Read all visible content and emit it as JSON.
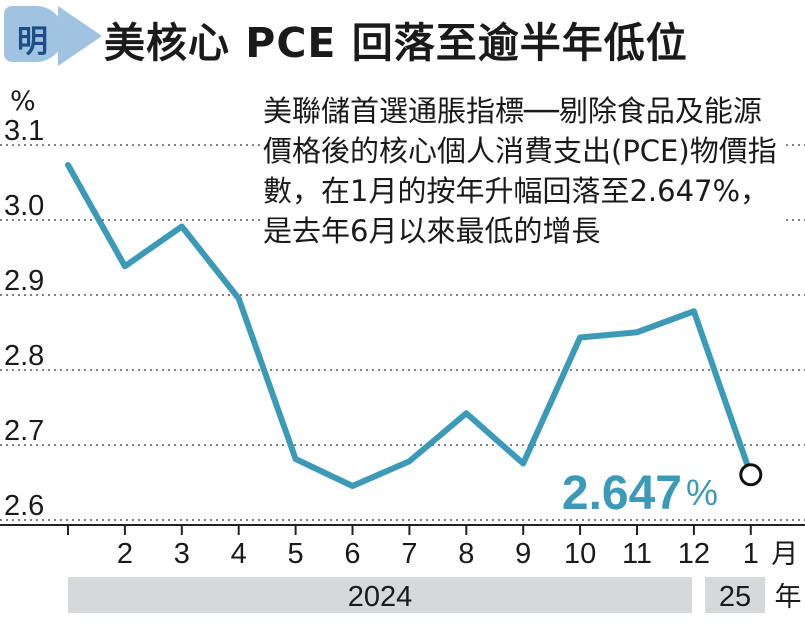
{
  "header": {
    "badge": "明",
    "title": "美核心 PCE 回落至逾半年低位"
  },
  "annotation": "美聯儲首選通脹指標──剔除食品及能源價格後的核心個人消費支出(PCE)物價指數，在1月的按年升幅回落至2.647%，是去年6月以來最低的增長",
  "chart_data": {
    "type": "line",
    "y_unit_label": "%",
    "ylim": [
      2.6,
      3.1
    ],
    "y_ticks": [
      "3.1",
      "3.0",
      "2.9",
      "2.8",
      "2.7",
      "2.6"
    ],
    "grid": "horizontal dotted",
    "x_labels": [
      "",
      "2",
      "3",
      "4",
      "5",
      "6",
      "7",
      "8",
      "9",
      "10",
      "11",
      "12",
      "1"
    ],
    "x_unit_label": "月",
    "years": [
      {
        "label": "2024",
        "from_index": 0,
        "to_index": 11
      },
      {
        "label": "25",
        "from_index": 12,
        "to_index": 12
      }
    ],
    "year_unit_label": "年",
    "series": [
      {
        "color": "#3b9ab8",
        "values": [
          3.06,
          2.925,
          2.978,
          2.882,
          2.668,
          2.632,
          2.665,
          2.729,
          2.662,
          2.83,
          2.837,
          2.865,
          2.647
        ]
      }
    ],
    "highlight": {
      "index": 12,
      "value_label": "2.647",
      "unit": "%"
    }
  }
}
